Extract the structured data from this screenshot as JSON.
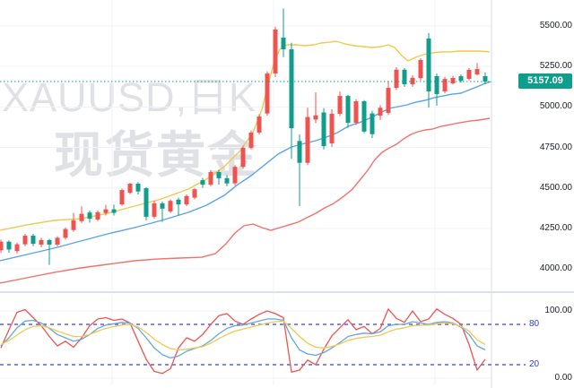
{
  "chart_data": {
    "type": "candlestick",
    "title": "XAUUSD,日K",
    "watermark": {
      "line1": "XAUUSD,日K",
      "line2": "现货黄金"
    },
    "symbol": "XAUUSD",
    "interval_label": "日K",
    "last_price": 5157.09,
    "last_price_label": "5157.09",
    "price_axis_ticks": [
      {
        "label": "5500.00",
        "price": 5500
      },
      {
        "label": "5250.00",
        "price": 5250
      },
      {
        "label": "5000.00",
        "price": 5000
      },
      {
        "label": "4750.00",
        "price": 4750
      },
      {
        "label": "4500.00",
        "price": 4500
      },
      {
        "label": "4250.00",
        "price": 4250
      },
      {
        "label": "4000.00",
        "price": 4000
      }
    ],
    "indicator_axis_ticks": [
      {
        "label": "100.00",
        "value": 100
      },
      {
        "label": "0.00",
        "value": 0
      }
    ],
    "indicator_levels": [
      {
        "label": "80",
        "value": 80
      },
      {
        "label": "20",
        "value": 20
      }
    ],
    "ohlc": [
      [
        4115,
        4180,
        4098,
        4168
      ],
      [
        4168,
        4176,
        4100,
        4120
      ],
      [
        4110,
        4162,
        4096,
        4152
      ],
      [
        4152,
        4216,
        4140,
        4205
      ],
      [
        4205,
        4216,
        4140,
        4155
      ],
      [
        4150,
        4192,
        4134,
        4178
      ],
      [
        4178,
        4186,
        4025,
        4150
      ],
      [
        4150,
        4202,
        4140,
        4192
      ],
      [
        4192,
        4256,
        4180,
        4246
      ],
      [
        4240,
        4346,
        4230,
        4300
      ],
      [
        4295,
        4386,
        4284,
        4340
      ],
      [
        4348,
        4360,
        4286,
        4310
      ],
      [
        4305,
        4360,
        4295,
        4350
      ],
      [
        4345,
        4396,
        4330,
        4368
      ],
      [
        4368,
        4396,
        4330,
        4346
      ],
      [
        4398,
        4495,
        4390,
        4487
      ],
      [
        4470,
        4532,
        4462,
        4526
      ],
      [
        4526,
        4535,
        4460,
        4478
      ],
      [
        4498,
        4505,
        4300,
        4322
      ],
      [
        4322,
        4420,
        4310,
        4405
      ],
      [
        4405,
        4415,
        4290,
        4372
      ],
      [
        4355,
        4430,
        4345,
        4420
      ],
      [
        4428,
        4440,
        4330,
        4398
      ],
      [
        4398,
        4460,
        4388,
        4450
      ],
      [
        4440,
        4500,
        4430,
        4492
      ],
      [
        4548,
        4562,
        4500,
        4520
      ],
      [
        4520,
        4610,
        4510,
        4598
      ],
      [
        4598,
        4612,
        4520,
        4560
      ],
      [
        4560,
        4580,
        4510,
        4528
      ],
      [
        4528,
        4640,
        4515,
        4630
      ],
      [
        4630,
        4760,
        4618,
        4748
      ],
      [
        4748,
        4855,
        4740,
        4842
      ],
      [
        4842,
        4955,
        4830,
        4941
      ],
      [
        4960,
        5220,
        4945,
        5207
      ],
      [
        5207,
        5495,
        5185,
        5478
      ],
      [
        5428,
        5608,
        5308,
        5356
      ],
      [
        5356,
        5396,
        4680,
        4869
      ],
      [
        4790,
        4830,
        4388,
        4655
      ],
      [
        4655,
        4996,
        4640,
        4938
      ],
      [
        4922,
        5090,
        4900,
        4948
      ],
      [
        4966,
        4992,
        4738,
        4758
      ],
      [
        4775,
        4986,
        4754,
        4958
      ],
      [
        4958,
        5096,
        4944,
        5068
      ],
      [
        5068,
        5076,
        4870,
        4902
      ],
      [
        4902,
        5048,
        4888,
        5035
      ],
      [
        5035,
        5042,
        4838,
        4848
      ],
      [
        4960,
        4976,
        4808,
        4832
      ],
      [
        4946,
        5012,
        4920,
        4995
      ],
      [
        4963,
        5162,
        4950,
        5118
      ],
      [
        5118,
        5246,
        5104,
        5230
      ],
      [
        5230,
        5240,
        5124,
        5140
      ],
      [
        5140,
        5196,
        5124,
        5180
      ],
      [
        5178,
        5300,
        5164,
        5290
      ],
      [
        5423,
        5456,
        4996,
        5096
      ],
      [
        5190,
        5206,
        5008,
        5079
      ],
      [
        5096,
        5186,
        5084,
        5173
      ],
      [
        5146,
        5192,
        5138,
        5179
      ],
      [
        5190,
        5202,
        5150,
        5162
      ],
      [
        5173,
        5240,
        5164,
        5229
      ],
      [
        5201,
        5272,
        5194,
        5234
      ],
      [
        5190,
        5212,
        5140,
        5157.09
      ]
    ],
    "bands": {
      "upper": {
        "color": "#f0c94e",
        "x": [
          0,
          30,
          60,
          90,
          120,
          150,
          180,
          210,
          230,
          250,
          268,
          282,
          292,
          300,
          306,
          312,
          320,
          330,
          340,
          350,
          358,
          368,
          375,
          385,
          395,
          405,
          415,
          425,
          433,
          440,
          448,
          455,
          463,
          472,
          482,
          492,
          502,
          512,
          524,
          534,
          546
        ],
        "price": [
          4238,
          4272,
          4299,
          4310,
          4343,
          4388,
          4432,
          4493,
          4554,
          4631,
          4731,
          4842,
          4985,
          5162,
          5284,
          5356,
          5384,
          5384,
          5378,
          5384,
          5395,
          5400,
          5406,
          5389,
          5378,
          5373,
          5367,
          5373,
          5384,
          5367,
          5317,
          5284,
          5306,
          5323,
          5334,
          5340,
          5340,
          5345,
          5345,
          5345,
          5340
        ]
      },
      "middle": {
        "color": "#5ca3e6",
        "x": [
          0,
          30,
          60,
          90,
          120,
          150,
          180,
          210,
          230,
          250,
          265,
          280,
          295,
          310,
          325,
          340,
          352,
          364,
          376,
          388,
          400,
          412,
          424,
          434,
          444,
          454,
          464,
          474,
          484,
          494,
          504,
          514,
          524,
          534,
          541,
          548
        ],
        "price": [
          4050,
          4089,
          4128,
          4172,
          4216,
          4255,
          4299,
          4349,
          4393,
          4454,
          4520,
          4576,
          4642,
          4709,
          4753,
          4775,
          4792,
          4814,
          4841,
          4880,
          4902,
          4930,
          4963,
          4991,
          5002,
          5013,
          5030,
          5041,
          5057,
          5068,
          5079,
          5085,
          5107,
          5129,
          5146,
          5157
        ]
      },
      "lower": {
        "color": "#f1726b",
        "x": [
          0,
          30,
          60,
          90,
          120,
          150,
          175,
          200,
          225,
          240,
          252,
          262,
          272,
          282,
          292,
          302,
          312,
          322,
          332,
          342,
          352,
          362,
          372,
          382,
          392,
          402,
          410,
          418,
          426,
          434,
          442,
          450,
          458,
          466,
          474,
          482,
          492,
          502,
          512,
          524,
          534,
          546
        ],
        "price": [
          3912,
          3945,
          3978,
          4006,
          4028,
          4050,
          4061,
          4067,
          4072,
          4094,
          4155,
          4222,
          4266,
          4277,
          4255,
          4238,
          4255,
          4271,
          4288,
          4316,
          4343,
          4377,
          4404,
          4443,
          4487,
          4554,
          4609,
          4675,
          4720,
          4747,
          4769,
          4803,
          4830,
          4847,
          4858,
          4863,
          4880,
          4891,
          4902,
          4913,
          4919,
          4930
        ]
      }
    },
    "indicator": {
      "range": [
        0,
        100
      ],
      "series": [
        {
          "name": "red",
          "color": "#ef5350",
          "values": [
            45,
            72,
            98,
            102,
            90,
            78,
            62,
            48,
            55,
            46,
            60,
            78,
            88,
            90,
            86,
            88,
            82,
            55,
            28,
            10,
            7,
            14,
            45,
            60,
            55,
            65,
            80,
            93,
            96,
            85,
            80,
            88,
            95,
            100,
            96,
            90,
            9,
            12,
            27,
            20,
            43,
            63,
            75,
            87,
            72,
            77,
            66,
            74,
            103,
            89,
            83,
            100,
            84,
            88,
            103,
            95,
            89,
            80,
            50,
            12,
            28
          ]
        },
        {
          "name": "blue",
          "color": "#62a7e4",
          "values": [
            48,
            60,
            75,
            85,
            86,
            82,
            74,
            65,
            60,
            55,
            58,
            65,
            74,
            79,
            81,
            83,
            82,
            74,
            60,
            45,
            35,
            30,
            33,
            40,
            44,
            48,
            56,
            66,
            74,
            78,
            79,
            82,
            85,
            88,
            88,
            86,
            60,
            42,
            36,
            34,
            38,
            45,
            53,
            62,
            65,
            67,
            66,
            69,
            78,
            80,
            80,
            84,
            82,
            80,
            83,
            84,
            82,
            76,
            65,
            48,
            42
          ]
        },
        {
          "name": "yellow",
          "color": "#f0c94e",
          "values": [
            50,
            56,
            64,
            72,
            77,
            78,
            75,
            70,
            66,
            62,
            62,
            65,
            70,
            74,
            77,
            79,
            80,
            76,
            68,
            58,
            50,
            44,
            42,
            43,
            45,
            47,
            52,
            59,
            65,
            70,
            73,
            76,
            79,
            82,
            84,
            85,
            74,
            62,
            52,
            46,
            45,
            47,
            51,
            56,
            59,
            61,
            62,
            64,
            69,
            73,
            75,
            78,
            79,
            79,
            81,
            82,
            81,
            77,
            70,
            57,
            50
          ]
        }
      ]
    },
    "colors": {
      "up": "#ef5350",
      "down": "#0f9d8c",
      "last_price": "#0f9d8c",
      "level_line": "#5b5fe8",
      "level_label": "#2d3be8",
      "grid": "#f0f3fa",
      "separator": "#dde1ec",
      "axis_border": "#d8dbe3",
      "axis_text": "#1a1e29"
    }
  }
}
